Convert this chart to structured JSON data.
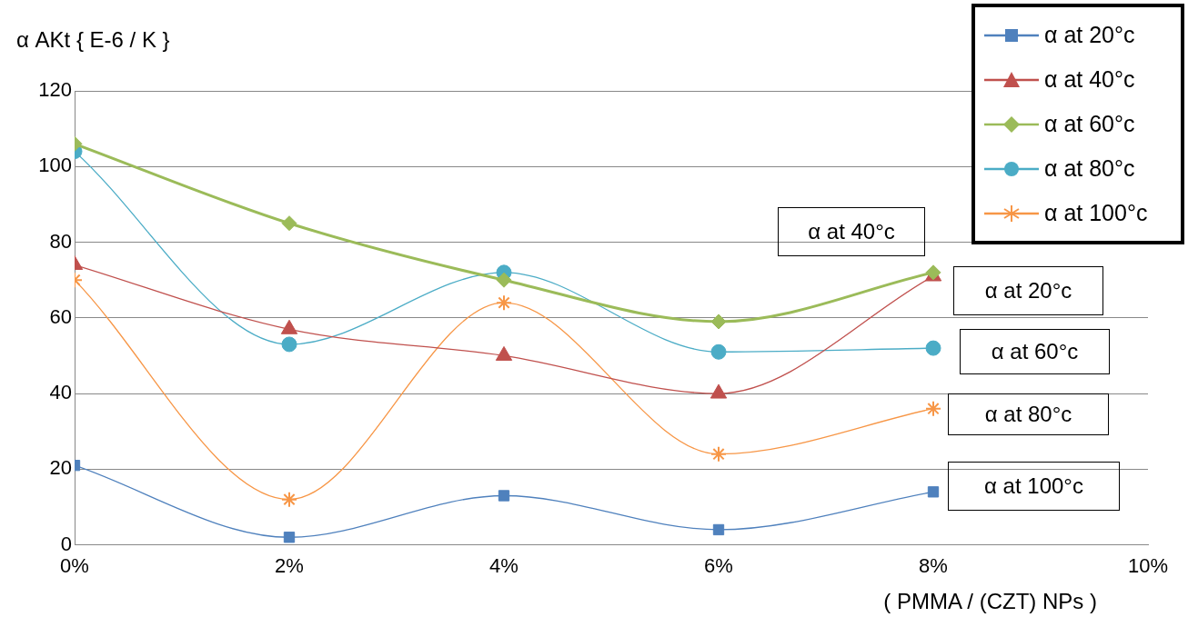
{
  "chart_data": {
    "type": "line",
    "ylabel": "α AKt { E-6 / K }",
    "xlabel": "( PMMA / (CZT) NPs )",
    "x": [
      0,
      2,
      4,
      6,
      8
    ],
    "xlim": [
      0,
      10
    ],
    "xticks": [
      {
        "value": 0,
        "label": "0%"
      },
      {
        "value": 2,
        "label": "2%"
      },
      {
        "value": 4,
        "label": "4%"
      },
      {
        "value": 6,
        "label": "6%"
      },
      {
        "value": 8,
        "label": "8%"
      },
      {
        "value": 10,
        "label": "10%"
      }
    ],
    "ylim": [
      0,
      120
    ],
    "yticks": [
      0,
      20,
      40,
      60,
      80,
      100,
      120
    ],
    "grid": "y",
    "legend": "top right",
    "series": [
      {
        "name": "α at 20°c",
        "color": "#4f81bd",
        "marker": "square",
        "values": [
          21,
          2,
          13,
          4,
          14
        ]
      },
      {
        "name": "α at 40°c",
        "color": "#c0504d",
        "marker": "triangle",
        "values": [
          74,
          57,
          50,
          40,
          71
        ]
      },
      {
        "name": "α at 60°c",
        "color": "#9bbb59",
        "marker": "diamond",
        "values": [
          106,
          85,
          70,
          59,
          72
        ]
      },
      {
        "name": "α at 80°c",
        "color": "#4bacc6",
        "marker": "circle",
        "values": [
          104,
          53,
          72,
          51,
          52
        ]
      },
      {
        "name": "α at 100°c",
        "color": "#f79646",
        "marker": "cross",
        "values": [
          70,
          12,
          64,
          24,
          36
        ]
      }
    ],
    "annotations": [
      "α at 40°c",
      "α at 20°c",
      "α at 60°c",
      "α at 80°c",
      "α at 100°c"
    ]
  }
}
